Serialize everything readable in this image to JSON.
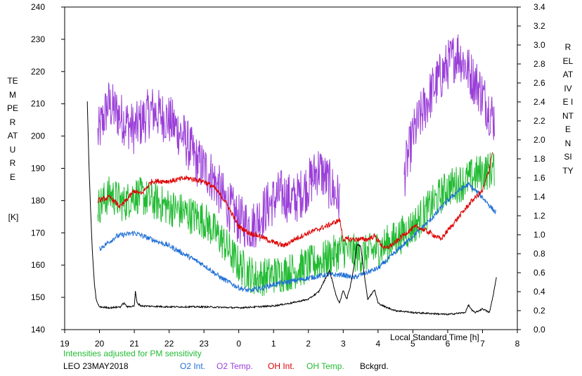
{
  "chart_data": {
    "type": "line",
    "xlabel": "Local Standard Time [h]",
    "ylabel_left": "TEMPERATURE",
    "ylabel_left_unit": "[K]",
    "ylabel_right": "RELATIVE INTENSITY",
    "x_range": [
      19,
      32
    ],
    "x_ticks": [
      19,
      20,
      21,
      22,
      23,
      24,
      25,
      26,
      27,
      28,
      29,
      30,
      31,
      32
    ],
    "x_tick_labels": [
      "19",
      "20",
      "21",
      "22",
      "23",
      "0",
      "1",
      "2",
      "3",
      "4",
      "5",
      "6",
      "7",
      "8"
    ],
    "ylim_left": [
      140,
      240
    ],
    "y_ticks_left": [
      "140",
      "150",
      "160",
      "170",
      "180",
      "190",
      "200",
      "210",
      "220",
      "230",
      "240"
    ],
    "ylim_right": [
      0.0,
      3.4
    ],
    "y_ticks_right": [
      "0.0",
      "0.2",
      "0.4",
      "0.6",
      "0.8",
      "1.0",
      "1.2",
      "1.4",
      "1.6",
      "1.8",
      "2.0",
      "2.2",
      "2.4",
      "2.6",
      "2.8",
      "3.0",
      "3.2",
      "3.4"
    ],
    "note": "Intensities adjusted for PM sensitivity",
    "station_date": "LEO 23MAY2018",
    "legend_position": "bottom",
    "series": [
      {
        "name": "O2 Int.",
        "color": "#1f6fd6",
        "axis": "left",
        "noise": 0.8,
        "x": [
          20.0,
          20.5,
          21.0,
          21.5,
          22.0,
          22.5,
          23.0,
          23.5,
          24.0,
          24.3,
          24.7,
          25.0,
          25.5,
          26.0,
          26.5,
          27.0,
          27.3,
          27.5,
          28.0,
          28.5,
          29.0,
          29.5,
          30.0,
          30.3,
          30.6,
          31.0,
          31.4
        ],
        "y": [
          165,
          169,
          170,
          168,
          166,
          163,
          160,
          156,
          153,
          152,
          153,
          154,
          155,
          156,
          157,
          157,
          156,
          157,
          159,
          164,
          169,
          174,
          180,
          183,
          185,
          181,
          176
        ]
      },
      {
        "name": "O2 Temp.",
        "color": "#9a3fd8",
        "axis": "left",
        "noise": 8,
        "x": [
          19.95,
          20.25,
          20.6,
          21.0,
          21.5,
          22.0,
          22.4,
          22.8,
          23.2,
          23.6,
          24.0,
          24.4,
          24.8,
          25.2,
          25.6,
          26.0,
          26.3,
          26.6,
          26.9
        ],
        "y": [
          200,
          210,
          206,
          202,
          208,
          205,
          200,
          192,
          188,
          180,
          174,
          172,
          178,
          182,
          180,
          185,
          190,
          185,
          180
        ],
        "x2": [
          28.75,
          29.0,
          29.3,
          29.6,
          30.0,
          30.3,
          30.6,
          30.9,
          31.2,
          31.35
        ],
        "y2": [
          188,
          200,
          208,
          215,
          222,
          226,
          220,
          215,
          208,
          205
        ]
      },
      {
        "name": "OH Int.",
        "color": "#dd0000",
        "axis": "left",
        "noise": 0.8,
        "x": [
          19.95,
          20.3,
          20.6,
          21.0,
          21.2,
          21.5,
          22.0,
          22.5,
          23.0,
          23.3,
          23.6,
          24.0,
          24.3,
          24.6,
          25.0,
          25.3,
          25.6,
          26.0,
          26.5,
          26.9,
          27.0,
          27.5,
          27.7,
          27.9,
          28.2,
          28.5,
          28.8,
          29.1,
          29.5,
          29.8,
          30.1,
          30.4,
          30.7,
          31.0,
          31.2,
          31.3
        ],
        "y": [
          180,
          181,
          178,
          183,
          182,
          186,
          186,
          187,
          186,
          184,
          180,
          172,
          170,
          169,
          167,
          166,
          168,
          170,
          172,
          174,
          168,
          168,
          168,
          169,
          165,
          167,
          170,
          172,
          170,
          168,
          172,
          176,
          180,
          183,
          190,
          196
        ]
      },
      {
        "name": "OH Temp.",
        "color": "#22bb33",
        "axis": "left",
        "noise": 6,
        "x": [
          19.95,
          20.3,
          20.7,
          21.0,
          21.5,
          22.0,
          22.5,
          23.0,
          23.5,
          24.0,
          24.5,
          25.0,
          25.5,
          26.0,
          26.5,
          27.0,
          27.5,
          28.0,
          28.5,
          29.0,
          29.5,
          30.0,
          30.5,
          30.8,
          31.1,
          31.35
        ],
        "y": [
          178,
          182,
          179,
          182,
          180,
          178,
          176,
          174,
          168,
          160,
          156,
          157,
          158,
          160,
          162,
          165,
          163,
          165,
          168,
          172,
          178,
          184,
          186,
          188,
          189,
          190
        ]
      },
      {
        "name": "Bckgrd.",
        "color": "#000000",
        "axis": "right",
        "noise": 0.008,
        "x": [
          19.65,
          19.7,
          19.75,
          19.8,
          19.85,
          19.9,
          19.95,
          20.0,
          20.3,
          20.6,
          20.7,
          20.8,
          21.0,
          21.03,
          21.08,
          21.2,
          22.0,
          23.0,
          24.0,
          24.5,
          25.0,
          25.5,
          26.0,
          26.3,
          26.6,
          26.7,
          26.8,
          26.9,
          27.0,
          27.1,
          27.2,
          27.3,
          27.4,
          27.5,
          27.6,
          27.7,
          27.9,
          28.0,
          28.2,
          28.5,
          28.8,
          29.0,
          29.5,
          30.0,
          30.5,
          30.6,
          30.7,
          30.8,
          31.0,
          31.2,
          31.3,
          31.4
        ],
        "y": [
          2.4,
          1.7,
          1.2,
          0.8,
          0.5,
          0.33,
          0.27,
          0.24,
          0.23,
          0.24,
          0.28,
          0.24,
          0.25,
          0.4,
          0.28,
          0.25,
          0.24,
          0.24,
          0.23,
          0.24,
          0.25,
          0.28,
          0.32,
          0.4,
          0.62,
          0.5,
          0.35,
          0.28,
          0.42,
          0.32,
          0.45,
          0.65,
          0.9,
          0.88,
          0.6,
          0.32,
          0.42,
          0.28,
          0.24,
          0.2,
          0.19,
          0.18,
          0.17,
          0.16,
          0.18,
          0.26,
          0.2,
          0.18,
          0.22,
          0.18,
          0.35,
          0.55
        ]
      }
    ]
  }
}
